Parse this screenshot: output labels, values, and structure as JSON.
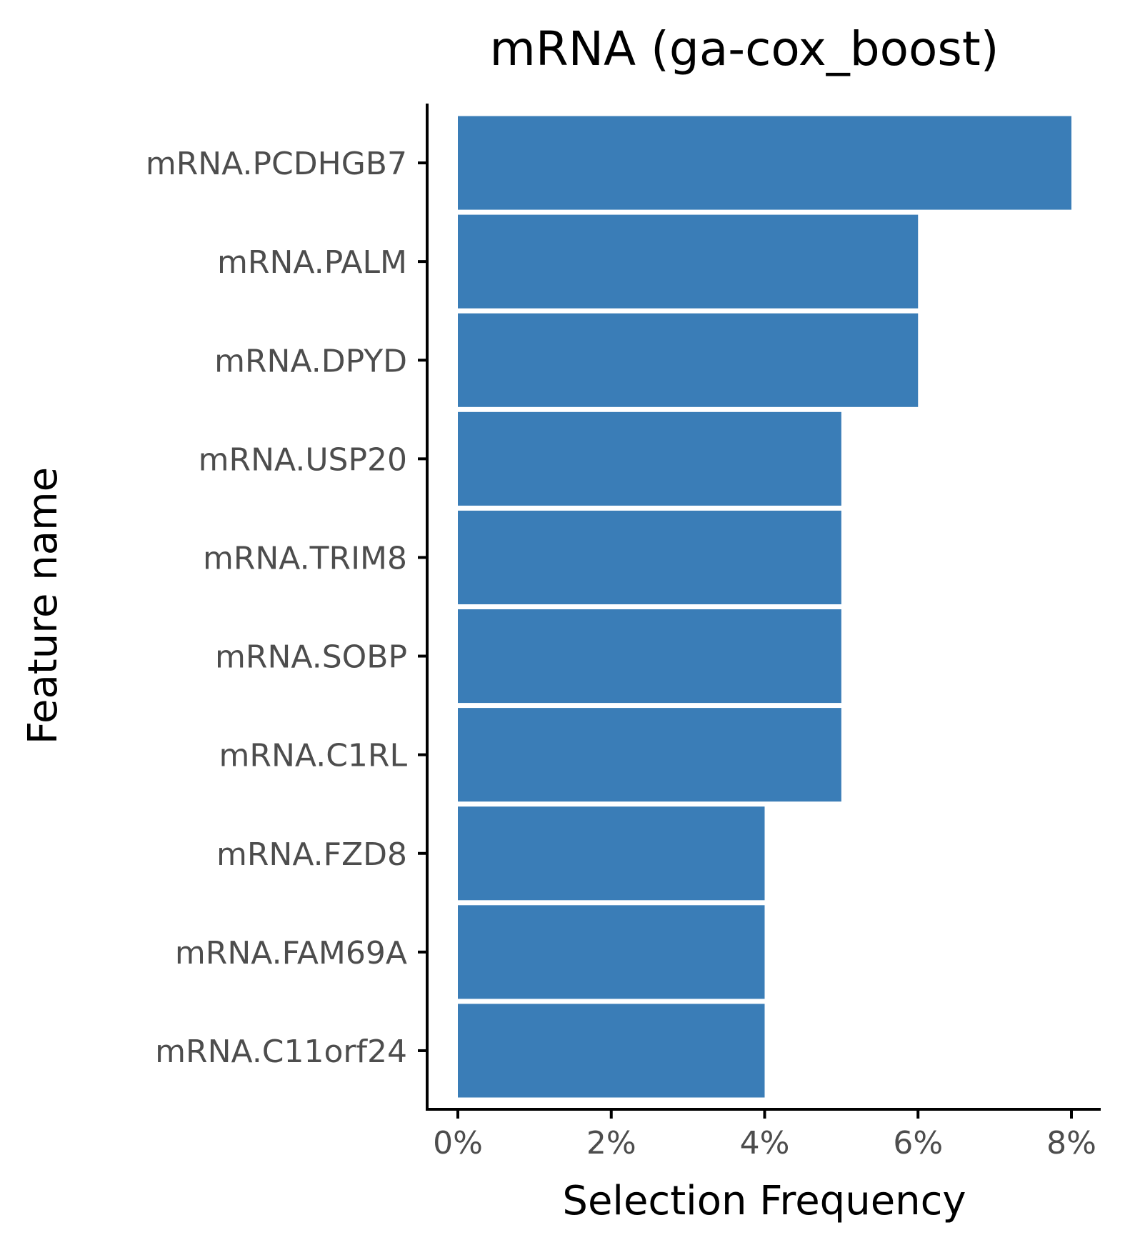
{
  "chart_data": {
    "type": "bar",
    "orientation": "horizontal",
    "title": "mRNA (ga-cox_boost)",
    "xlabel": "Selection Frequency",
    "ylabel": "Feature name",
    "categories": [
      "mRNA.PCDHGB7",
      "mRNA.PALM",
      "mRNA.DPYD",
      "mRNA.USP20",
      "mRNA.TRIM8",
      "mRNA.SOBP",
      "mRNA.C1RL",
      "mRNA.FZD8",
      "mRNA.FAM69A",
      "mRNA.C11orf24"
    ],
    "values": [
      8,
      6,
      6,
      5,
      5,
      5,
      5,
      4,
      4,
      4
    ],
    "value_unit": "%",
    "xlim": [
      0,
      8
    ],
    "xticks": [
      0,
      2,
      4,
      6,
      8
    ],
    "xtick_labels": [
      "0%",
      "2%",
      "4%",
      "6%",
      "8%"
    ],
    "grid": false,
    "legend": "none",
    "bar_color": "#3A7DB7"
  }
}
